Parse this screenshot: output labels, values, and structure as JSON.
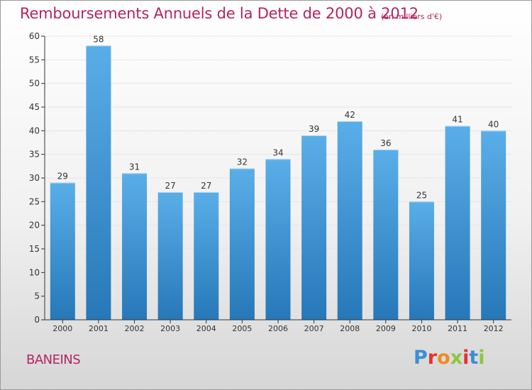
{
  "header": {
    "title": "Remboursements Annuels de la Dette de 2000 à 2012",
    "unit": "(en milliers d'€)"
  },
  "footer": {
    "commune": "BANEINS",
    "logo_letters": [
      "P",
      "r",
      "o",
      "x",
      "i",
      "t",
      "i"
    ],
    "logo_colors": [
      "#3a8fd6",
      "#e8312f",
      "#f08a24",
      "#8dc63f",
      "#e8312f",
      "#3a8fd6",
      "#8dc63f"
    ]
  },
  "colors": {
    "bar_light": "#5aaee8",
    "bar_dark": "#2678b8",
    "axis": "#333333",
    "grid": "#e6e6e6",
    "title": "#b5245f"
  },
  "chart_data": {
    "type": "bar",
    "categories": [
      "2000",
      "2001",
      "2002",
      "2003",
      "2004",
      "2005",
      "2006",
      "2007",
      "2008",
      "2009",
      "2010",
      "2011",
      "2012"
    ],
    "values": [
      29,
      58,
      31,
      27,
      27,
      32,
      34,
      39,
      42,
      36,
      25,
      41,
      40
    ],
    "ylim": [
      0,
      60
    ],
    "yticks": [
      0,
      5,
      10,
      15,
      20,
      25,
      30,
      35,
      40,
      45,
      50,
      55,
      60
    ],
    "grid": true,
    "data_labels": true
  }
}
